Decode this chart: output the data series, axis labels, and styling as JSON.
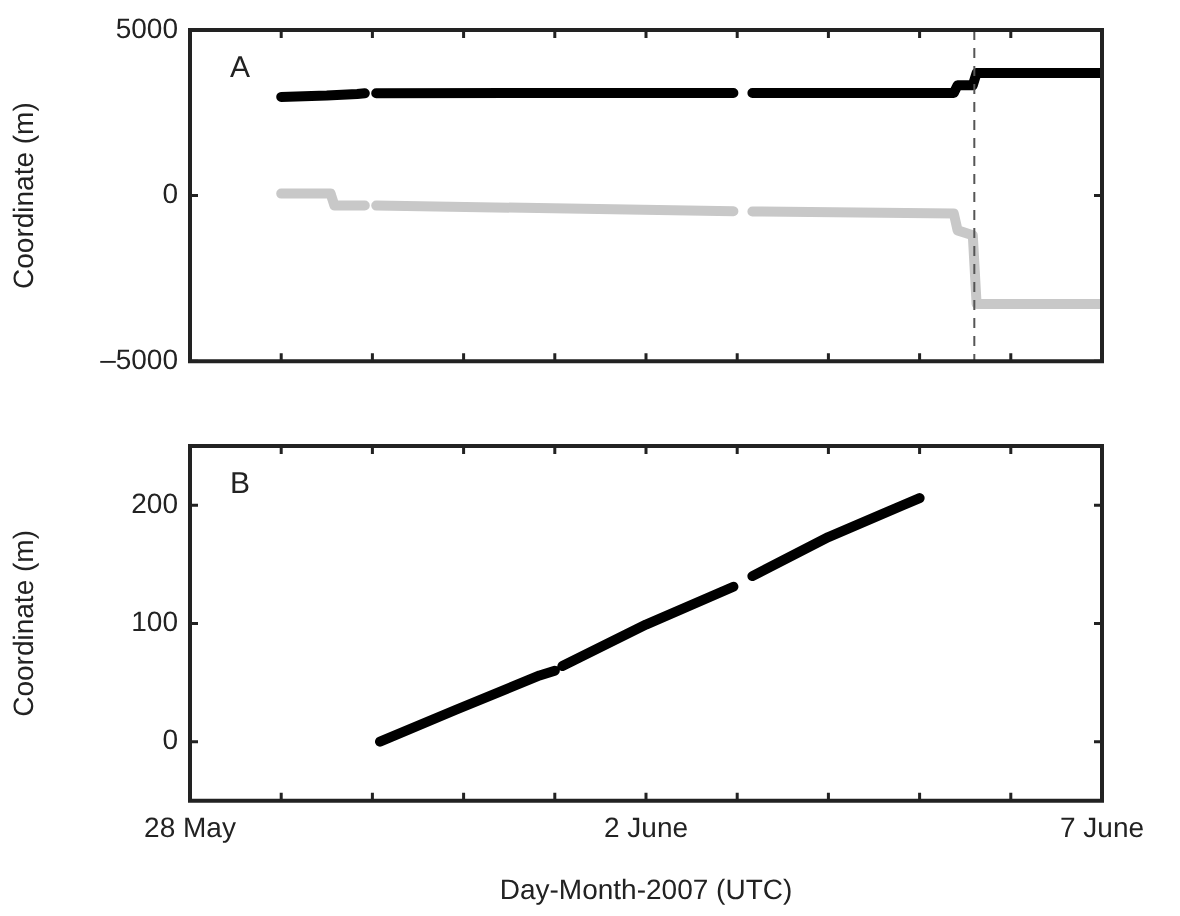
{
  "chart_data": [
    {
      "type": "line",
      "ylabel": "Coordinate (m)",
      "annotations": [
        "A"
      ],
      "marker": "none",
      "line_style": "solid",
      "grid": false,
      "legend": false,
      "tick_labels": "y",
      "xlim": [
        "2007-05-28",
        "2007-06-07"
      ],
      "xticks": [
        {
          "value": "2007-05-28",
          "label": null
        },
        {
          "value": "2007-05-29",
          "label": null
        },
        {
          "value": "2007-05-30",
          "label": null
        },
        {
          "value": "2007-05-31",
          "label": null
        },
        {
          "value": "2007-06-01",
          "label": null
        },
        {
          "value": "2007-06-02",
          "label": null
        },
        {
          "value": "2007-06-03",
          "label": null
        },
        {
          "value": "2007-06-04",
          "label": null
        },
        {
          "value": "2007-06-05",
          "label": null
        },
        {
          "value": "2007-06-06",
          "label": null
        },
        {
          "value": "2007-06-07",
          "label": null
        }
      ],
      "ylim": [
        -5000,
        5000
      ],
      "yticks": [
        {
          "value": -5000,
          "label": "–5000"
        },
        0,
        5000
      ],
      "ref_lines": [
        {
          "axis": "x",
          "value": "2007-06-05T14:24",
          "line_style": "dashed",
          "color": "#555555"
        }
      ],
      "series": [
        {
          "color": "#000000",
          "x": [
            "2007-05-29T00:00",
            "2007-05-29T12:00",
            "2007-05-29T20:00",
            "2007-05-29T22:00",
            "2007-05-29T23:00",
            "2007-05-30T01:00",
            "2007-06-02T00:00",
            "2007-06-02T23:00",
            "2007-06-03T02:00",
            "2007-06-03T04:00",
            "2007-06-05T09:00",
            "2007-06-05T10:00",
            "2007-06-05T14:00",
            "2007-06-05T15:00",
            "2007-06-07T00:00"
          ],
          "values": [
            2980,
            3020,
            3070,
            3090,
            null,
            3090,
            3100,
            3100,
            null,
            3100,
            3100,
            3330,
            3330,
            3700,
            3700
          ]
        },
        {
          "color": "#c8c8c8",
          "x": [
            "2007-05-29T00:00",
            "2007-05-29T13:00",
            "2007-05-29T14:00",
            "2007-05-29T22:00",
            "2007-05-29T23:00",
            "2007-05-30T01:00",
            "2007-06-02T23:00",
            "2007-06-03T02:00",
            "2007-06-03T04:00",
            "2007-06-05T09:00",
            "2007-06-05T10:00",
            "2007-06-05T14:00",
            "2007-06-05T15:00",
            "2007-06-07T00:00"
          ],
          "values": [
            60,
            60,
            -300,
            -300,
            null,
            -300,
            -470,
            null,
            -480,
            -540,
            -1050,
            -1200,
            -3270,
            -3270
          ]
        }
      ]
    },
    {
      "type": "line",
      "ylabel": "Coordinate (m)",
      "xlabel": "Day-Month-2007 (UTC)",
      "annotations": [
        "B"
      ],
      "marker": "none",
      "line_style": "solid",
      "grid": false,
      "legend": false,
      "xlim": [
        "2007-05-28",
        "2007-06-07"
      ],
      "xticks": [
        {
          "value": "2007-05-28",
          "label": "28 May"
        },
        {
          "value": "2007-05-29",
          "label": null
        },
        {
          "value": "2007-05-30",
          "label": null
        },
        {
          "value": "2007-05-31",
          "label": null
        },
        {
          "value": "2007-06-01",
          "label": null
        },
        {
          "value": "2007-06-02",
          "label": "2 June"
        },
        {
          "value": "2007-06-03",
          "label": null
        },
        {
          "value": "2007-06-04",
          "label": null
        },
        {
          "value": "2007-06-05",
          "label": null
        },
        {
          "value": "2007-06-06",
          "label": null
        },
        {
          "value": "2007-06-07",
          "label": "7 June"
        }
      ],
      "ylim": [
        -50,
        250
      ],
      "yticks": [
        0,
        100,
        200
      ],
      "series": [
        {
          "color": "#000000",
          "x": [
            "2007-05-30T02:00",
            "2007-05-30T22:00",
            "2007-05-31T20:00",
            "2007-06-01T00:00",
            "2007-06-01T01:00",
            "2007-06-01T02:00",
            "2007-06-02T00:00",
            "2007-06-02T23:00",
            "2007-06-03T02:00",
            "2007-06-03T04:00",
            "2007-06-04T00:00",
            "2007-06-05T00:00"
          ],
          "values": [
            0,
            27,
            56,
            60,
            null,
            64,
            99,
            131,
            null,
            140,
            173,
            206
          ]
        }
      ]
    }
  ]
}
